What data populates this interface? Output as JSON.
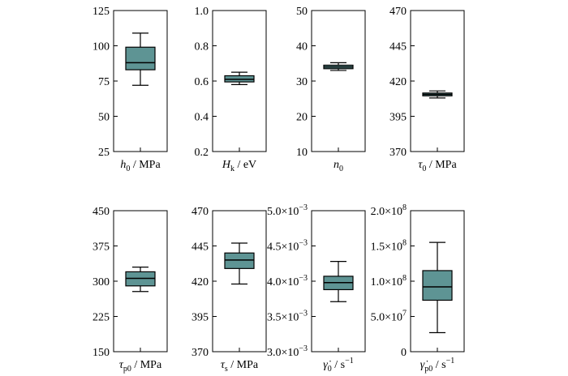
{
  "chart_data": [
    {
      "type": "box",
      "xlabel": "h0 / MPa",
      "ylim": [
        25,
        125
      ],
      "yticks": [
        25,
        50,
        75,
        100,
        125
      ],
      "ytick_labels": [
        "25",
        "50",
        "75",
        "100",
        "125"
      ],
      "box": {
        "whisker_low": 72,
        "q1": 83,
        "median": 88,
        "q3": 99,
        "whisker_high": 109
      }
    },
    {
      "type": "box",
      "xlabel": "Hk / eV",
      "ylim": [
        0.2,
        1.0
      ],
      "yticks": [
        0.2,
        0.4,
        0.6,
        0.8,
        1.0
      ],
      "ytick_labels": [
        "0.2",
        "0.4",
        "0.6",
        "0.8",
        "1.0"
      ],
      "box": {
        "whisker_low": 0.58,
        "q1": 0.595,
        "median": 0.61,
        "q3": 0.63,
        "whisker_high": 0.65
      }
    },
    {
      "type": "box",
      "xlabel": "n0",
      "ylim": [
        10,
        50
      ],
      "yticks": [
        10,
        20,
        30,
        40,
        50
      ],
      "ytick_labels": [
        "10",
        "20",
        "30",
        "40",
        "50"
      ],
      "box": {
        "whisker_low": 33,
        "q1": 33.5,
        "median": 34,
        "q3": 34.5,
        "whisker_high": 35.2
      }
    },
    {
      "type": "box",
      "xlabel": "τ0 / MPa",
      "ylim": [
        370,
        470
      ],
      "yticks": [
        370,
        395,
        420,
        445,
        470
      ],
      "ytick_labels": [
        "370",
        "395",
        "420",
        "445",
        "470"
      ],
      "box": {
        "whisker_low": 408,
        "q1": 409.5,
        "median": 410.5,
        "q3": 411.5,
        "whisker_high": 413
      }
    },
    {
      "type": "box",
      "xlabel": "τp0 / MPa",
      "ylim": [
        150,
        450
      ],
      "yticks": [
        150,
        225,
        300,
        375,
        450
      ],
      "ytick_labels": [
        "150",
        "225",
        "300",
        "375",
        "450"
      ],
      "box": {
        "whisker_low": 278,
        "q1": 290,
        "median": 306,
        "q3": 320,
        "whisker_high": 330
      }
    },
    {
      "type": "box",
      "xlabel": "τs / MPa",
      "ylim": [
        370,
        470
      ],
      "yticks": [
        370,
        395,
        420,
        445,
        470
      ],
      "ytick_labels": [
        "370",
        "395",
        "420",
        "445",
        "470"
      ],
      "box": {
        "whisker_low": 418,
        "q1": 429,
        "median": 435,
        "q3": 440,
        "whisker_high": 447
      }
    },
    {
      "type": "box",
      "xlabel": "γ̇0 / s−1",
      "ylim": [
        0.003,
        0.005
      ],
      "yticks": [
        0.003,
        0.0035,
        0.004,
        0.0045,
        0.005
      ],
      "ytick_labels": [
        "3.0×10−3",
        "3.5×10−3",
        "4.0×10−3",
        "4.5×10−3",
        "5.0×10−3"
      ],
      "box": {
        "whisker_low": 0.00371,
        "q1": 0.00388,
        "median": 0.00398,
        "q3": 0.00407,
        "whisker_high": 0.00428
      }
    },
    {
      "type": "box",
      "xlabel": "γ̇p0 / s−1",
      "ylim": [
        0,
        200000000
      ],
      "yticks": [
        0,
        50000000,
        100000000,
        150000000,
        200000000
      ],
      "ytick_labels": [
        "0",
        "5.0×107",
        "1.0×108",
        "1.5×108",
        "2.0×108"
      ],
      "box": {
        "whisker_low": 27000000,
        "q1": 73000000,
        "median": 92000000,
        "q3": 115000000,
        "whisker_high": 155000000
      }
    }
  ],
  "colors": {
    "box_fill": "#5e9494",
    "stroke": "#000000"
  }
}
